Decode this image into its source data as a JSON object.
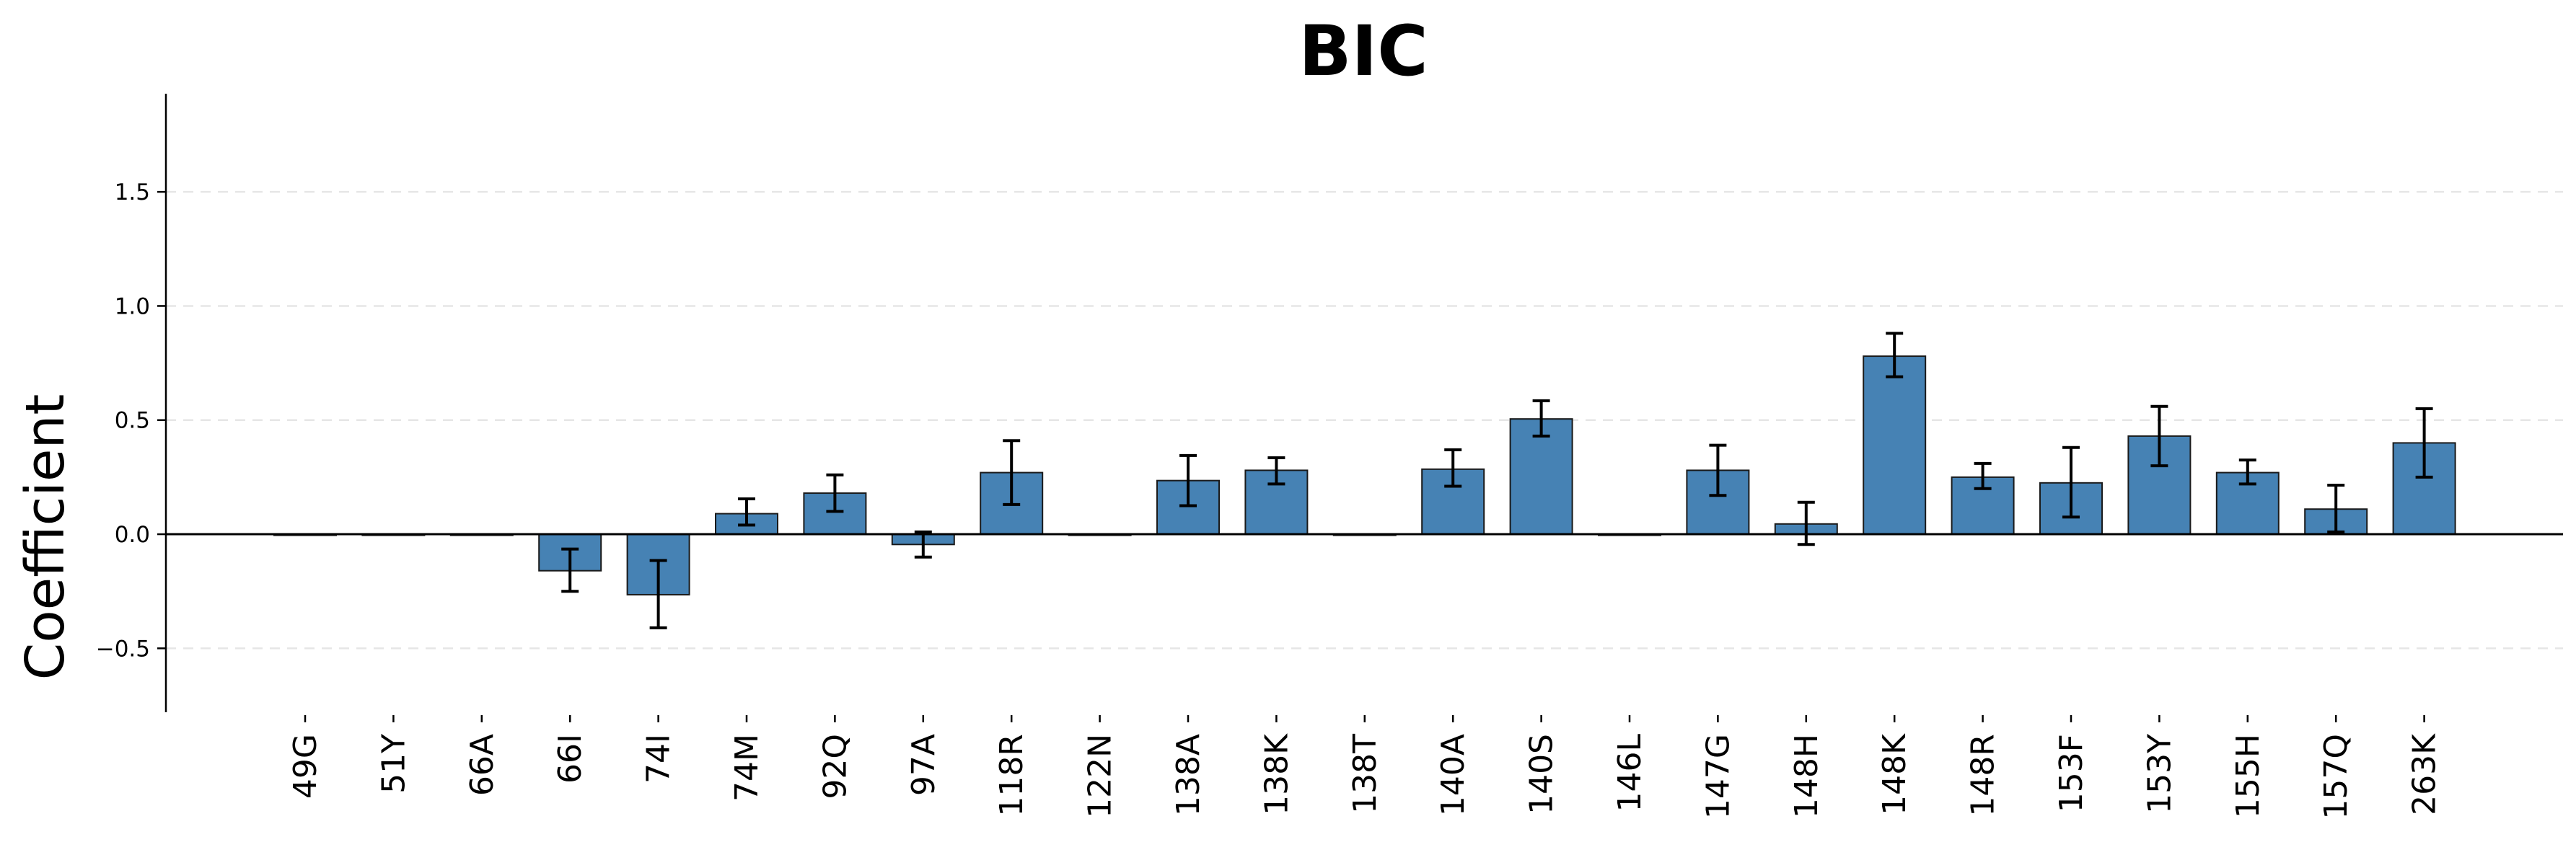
{
  "chart_data": {
    "type": "bar",
    "title": "BIC",
    "xlabel": "",
    "ylabel": "Coefficient",
    "ylim": [
      -0.78,
      1.93
    ],
    "yticks": [
      -0.5,
      0.0,
      0.5,
      1.0,
      1.5
    ],
    "ytick_labels": [
      "−0.5",
      "0.0",
      "0.5",
      "1.0",
      "1.5"
    ],
    "grid": "y, dashed",
    "categories": [
      "49G",
      "51Y",
      "66A",
      "66I",
      "74I",
      "74M",
      "92Q",
      "97A",
      "118R",
      "122N",
      "138A",
      "138K",
      "138T",
      "140A",
      "140S",
      "146L",
      "147G",
      "148H",
      "148K",
      "148R",
      "153F",
      "153Y",
      "155H",
      "157Q",
      "263K"
    ],
    "values": [
      0.0,
      0.0,
      0.0,
      -0.16,
      -0.265,
      0.09,
      0.18,
      -0.045,
      0.27,
      0.0,
      0.235,
      0.28,
      0.0,
      0.285,
      0.505,
      0.0,
      0.28,
      0.045,
      0.78,
      0.25,
      0.225,
      0.43,
      0.27,
      0.11,
      0.4
    ],
    "error_low": [
      0.0,
      0.0,
      0.0,
      -0.25,
      -0.41,
      0.04,
      0.1,
      -0.1,
      0.13,
      0.0,
      0.125,
      0.22,
      0.0,
      0.21,
      0.43,
      0.0,
      0.17,
      -0.045,
      0.69,
      0.2,
      0.075,
      0.3,
      0.22,
      0.01,
      0.25
    ],
    "error_high": [
      0.0,
      0.0,
      0.0,
      -0.065,
      -0.115,
      0.155,
      0.26,
      0.01,
      0.41,
      0.0,
      0.345,
      0.335,
      0.0,
      0.37,
      0.585,
      0.0,
      0.39,
      0.14,
      0.88,
      0.31,
      0.38,
      0.56,
      0.325,
      0.215,
      0.55
    ],
    "colors": {
      "bar": "#4682b4",
      "edge": "#1a1a1a",
      "grid": "#e6e6e6"
    }
  }
}
